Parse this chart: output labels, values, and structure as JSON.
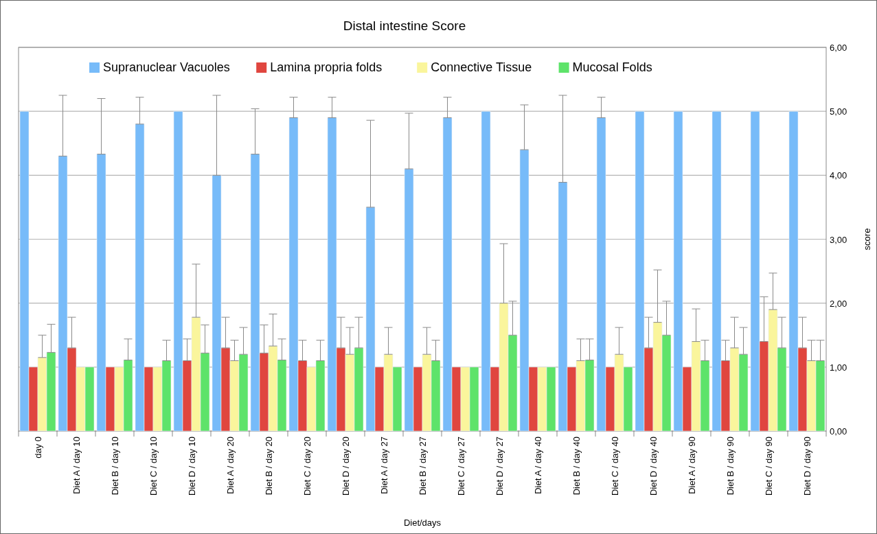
{
  "chart_data": {
    "type": "bar",
    "title": "Distal intestine Score",
    "xlabel": "Diet/days",
    "ylabel": "score",
    "categories": [
      "day 0",
      "Diet A / day 10",
      "Diet B / day 10",
      "Diet C / day 10",
      "Diet D / day 10",
      "Diet A / day 20",
      "Diet B / day 20",
      "Diet C / day 20",
      "Diet D / day 20",
      "Diet A / day 27",
      "Diet B / day 27",
      "Diet C / day 27",
      "Diet D / day 27",
      "Diet A / day 40",
      "Diet B / day 40",
      "Diet C / day 40",
      "Diet D / day 40",
      "Diet A / day 90",
      "Diet B / day 90",
      "Diet C / day 90",
      "Diet D / day 90"
    ],
    "series": [
      {
        "name": "Supranuclear Vacuoles",
        "color": "#77bbf9",
        "values": [
          5,
          4.3,
          4.33,
          4.8,
          5,
          4.0,
          4.33,
          4.9,
          4.9,
          3.5,
          4.1,
          4.9,
          5,
          4.4,
          3.89,
          4.9,
          5,
          5,
          5,
          5,
          5
        ],
        "errors": [
          null,
          [
            4.3,
            5.25
          ],
          [
            4.33,
            5.2
          ],
          [
            4.8,
            5.22
          ],
          null,
          [
            4.0,
            5.25
          ],
          [
            4.33,
            5.04
          ],
          [
            4.9,
            5.22
          ],
          [
            4.9,
            5.22
          ],
          [
            3.5,
            4.86
          ],
          [
            4.1,
            4.97
          ],
          [
            4.9,
            5.22
          ],
          null,
          [
            4.4,
            5.1
          ],
          [
            3.89,
            5.25
          ],
          [
            4.9,
            5.22
          ],
          null,
          null,
          null,
          null,
          null
        ]
      },
      {
        "name": "Lamina propria folds",
        "color": "#e0463f",
        "values": [
          1,
          1.3,
          1,
          1,
          1.1,
          1.3,
          1.22,
          1.1,
          1.3,
          1,
          1,
          1,
          1,
          1,
          1,
          1,
          1.3,
          1,
          1.1,
          1.4,
          1.3
        ],
        "errors": [
          null,
          [
            1.3,
            1.78
          ],
          null,
          null,
          [
            1.1,
            1.44
          ],
          [
            1.3,
            1.78
          ],
          [
            1.22,
            1.66
          ],
          [
            1.1,
            1.42
          ],
          [
            1.3,
            1.78
          ],
          null,
          null,
          null,
          null,
          null,
          null,
          null,
          [
            1.3,
            1.78
          ],
          null,
          [
            1.1,
            1.42
          ],
          [
            1.4,
            2.1
          ],
          [
            1.3,
            1.78
          ]
        ]
      },
      {
        "name": "Connective Tissue",
        "color": "#faf59c",
        "values": [
          1.15,
          1,
          1,
          1,
          1.78,
          1.1,
          1.33,
          1,
          1.2,
          1.2,
          1.2,
          1,
          2,
          1,
          1.1,
          1.2,
          1.7,
          1.4,
          1.3,
          1.9,
          1.1
        ],
        "errors": [
          [
            1.15,
            1.5
          ],
          null,
          null,
          null,
          [
            1.78,
            2.61
          ],
          [
            1.1,
            1.42
          ],
          [
            1.33,
            1.83
          ],
          null,
          [
            1.2,
            1.62
          ],
          [
            1.2,
            1.62
          ],
          [
            1.2,
            1.62
          ],
          null,
          [
            2,
            2.93
          ],
          null,
          [
            1.1,
            1.44
          ],
          [
            1.2,
            1.62
          ],
          [
            1.7,
            2.52
          ],
          [
            1.4,
            1.91
          ],
          [
            1.3,
            1.78
          ],
          [
            1.9,
            2.47
          ],
          [
            1.1,
            1.42
          ]
        ]
      },
      {
        "name": "Mucosal Folds",
        "color": "#5ee36a",
        "values": [
          1.23,
          1,
          1.11,
          1.1,
          1.22,
          1.2,
          1.11,
          1.1,
          1.3,
          1,
          1.1,
          1,
          1.5,
          1,
          1.11,
          1,
          1.5,
          1.1,
          1.2,
          1.3,
          1.1
        ],
        "errors": [
          [
            1.23,
            1.67
          ],
          null,
          [
            1.11,
            1.44
          ],
          [
            1.1,
            1.42
          ],
          [
            1.22,
            1.66
          ],
          [
            1.2,
            1.62
          ],
          [
            1.11,
            1.44
          ],
          [
            1.1,
            1.42
          ],
          [
            1.3,
            1.78
          ],
          null,
          [
            1.1,
            1.42
          ],
          null,
          [
            1.5,
            2.03
          ],
          null,
          [
            1.11,
            1.44
          ],
          null,
          [
            1.5,
            2.03
          ],
          [
            1.1,
            1.42
          ],
          [
            1.2,
            1.62
          ],
          [
            1.3,
            1.78
          ],
          [
            1.1,
            1.42
          ]
        ]
      }
    ],
    "ylim": [
      0,
      6
    ],
    "yticks": [
      {
        "value": 0,
        "label": "0,00"
      },
      {
        "value": 1,
        "label": "1,00"
      },
      {
        "value": 2,
        "label": "2,00"
      },
      {
        "value": 3,
        "label": "3,00"
      },
      {
        "value": 4,
        "label": "4,00"
      },
      {
        "value": 5,
        "label": "5,00"
      },
      {
        "value": 6,
        "label": "6,00"
      }
    ],
    "grid": "y",
    "legend": "top"
  }
}
